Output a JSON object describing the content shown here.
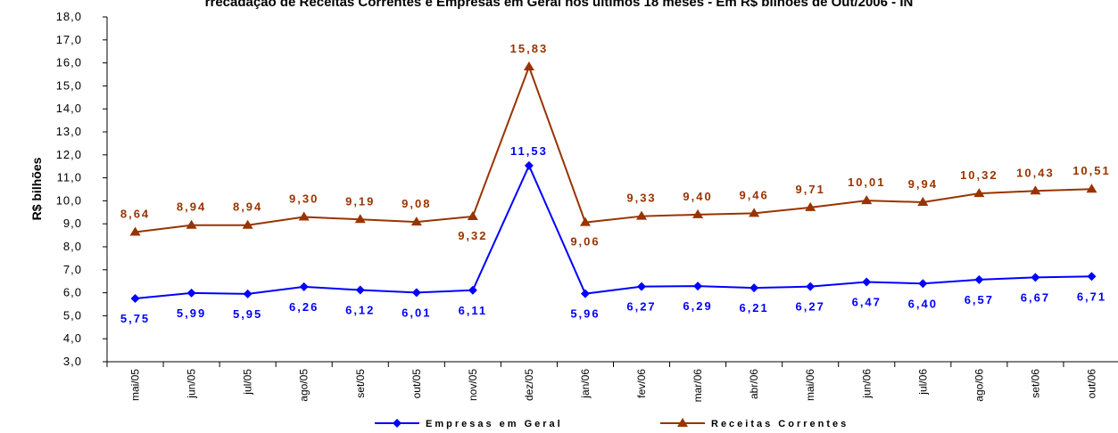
{
  "chart_data": {
    "type": "line",
    "title": "rrecadação de Receitas Correntes e Empresas em Geral nos últimos 18 meses - Em R$ bilhões de Out/2006 - IN",
    "xlabel": "",
    "ylabel": "R$ bilhões",
    "ylim": [
      3.0,
      18.0
    ],
    "ytick_step": 1.0,
    "yticks": [
      "3,0",
      "4,0",
      "5,0",
      "6,0",
      "7,0",
      "8,0",
      "9,0",
      "10,0",
      "11,0",
      "12,0",
      "13,0",
      "14,0",
      "15,0",
      "16,0",
      "17,0",
      "18,0"
    ],
    "categories": [
      "mai/05",
      "jun/05",
      "jul/05",
      "ago/05",
      "set/05",
      "out/05",
      "nov/05",
      "dez/05",
      "jan/06",
      "fev/06",
      "mar/06",
      "abr/06",
      "mai/06",
      "jun/06",
      "jul/06",
      "ago/06",
      "set/06",
      "out/06"
    ],
    "series": [
      {
        "name": "Empresas em Geral",
        "color": "#0000FF",
        "marker": "diamond",
        "values": [
          5.75,
          5.99,
          5.95,
          6.26,
          6.12,
          6.01,
          6.11,
          11.53,
          5.96,
          6.27,
          6.29,
          6.21,
          6.27,
          6.47,
          6.4,
          6.57,
          6.67,
          6.71
        ],
        "labels": [
          "5,75",
          "5,99",
          "5,95",
          "6,26",
          "6,12",
          "6,01",
          "6,11",
          "11,53",
          "5,96",
          "6,27",
          "6,29",
          "6,21",
          "6,27",
          "6,47",
          "6,40",
          "6,57",
          "6,67",
          "6,71"
        ]
      },
      {
        "name": "Receitas Correntes",
        "color": "#993300",
        "marker": "triangle",
        "values": [
          8.64,
          8.94,
          8.94,
          9.3,
          9.19,
          9.08,
          9.32,
          15.83,
          9.06,
          9.33,
          9.4,
          9.46,
          9.71,
          10.01,
          9.94,
          10.32,
          10.43,
          10.51
        ],
        "labels": [
          "8,64",
          "8,94",
          "8,94",
          "9,30",
          "9,19",
          "9,08",
          "9,32",
          "15,83",
          "9,06",
          "9,33",
          "9,40",
          "9,46",
          "9,71",
          "10,01",
          "9,94",
          "10,32",
          "10,43",
          "10,51"
        ]
      }
    ],
    "grid": false,
    "legend_position": "bottom"
  }
}
